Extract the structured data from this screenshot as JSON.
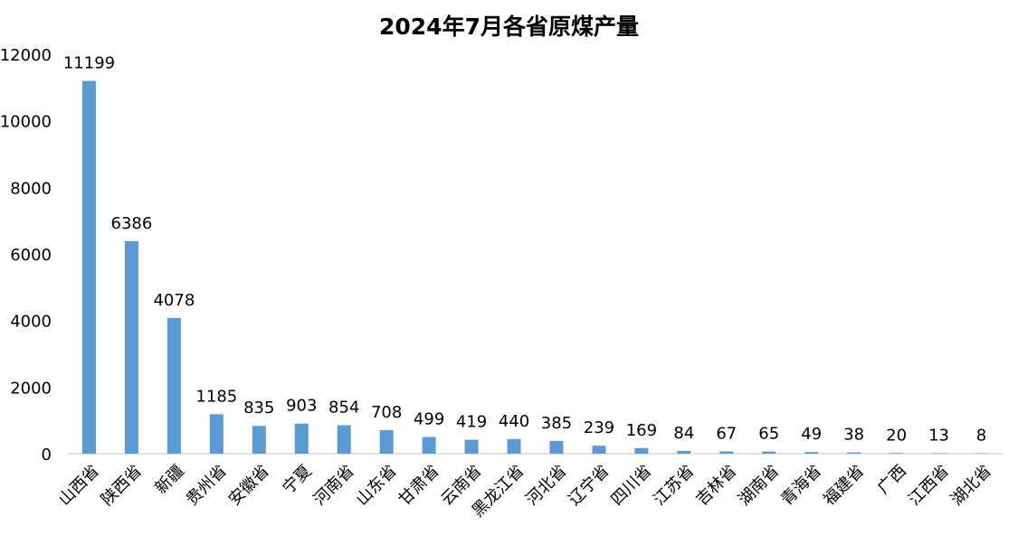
{
  "chart_data": {
    "type": "bar",
    "title": "2024年7月各省原煤产量",
    "xlabel": "",
    "ylabel": "",
    "ylim": [
      0,
      12000
    ],
    "yticks": [
      0,
      2000,
      4000,
      6000,
      8000,
      10000,
      12000
    ],
    "grid": false,
    "legend": "none",
    "bar_color": "#5B9BD5",
    "categories": [
      "山西省",
      "陕西省",
      "新疆",
      "贵州省",
      "安徽省",
      "宁夏",
      "河南省",
      "山东省",
      "甘肃省",
      "云南省",
      "黑龙江省",
      "河北省",
      "辽宁省",
      "四川省",
      "江苏省",
      "吉林省",
      "湖南省",
      "青海省",
      "福建省",
      "广西",
      "江西省",
      "湖北省"
    ],
    "values": [
      11199,
      6386,
      4078,
      1185,
      835,
      903,
      854,
      708,
      499,
      419,
      440,
      385,
      239,
      169,
      84,
      67,
      65,
      49,
      38,
      20,
      13,
      8
    ]
  }
}
